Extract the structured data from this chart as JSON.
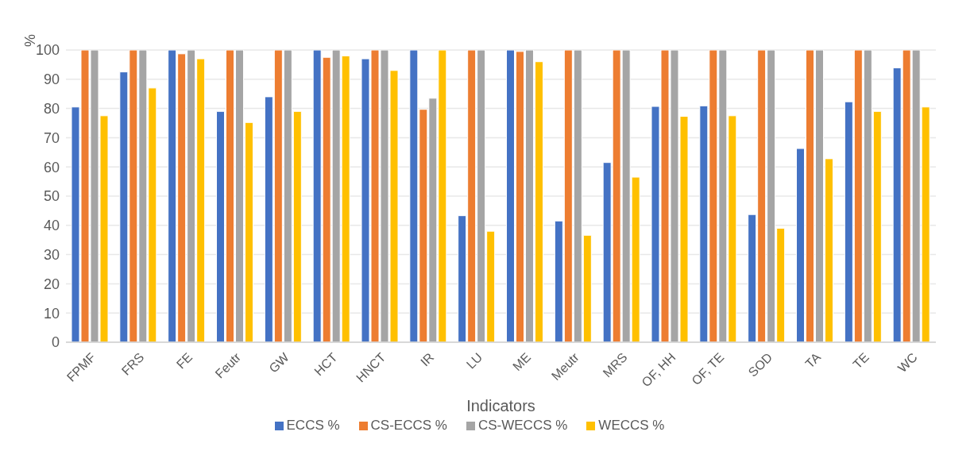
{
  "chart_data": {
    "type": "bar",
    "xlabel": "Indicators",
    "ylabel": "%",
    "categories": [
      "FPMF",
      "FRS",
      "FE",
      "Feutr",
      "GW",
      "HCT",
      "HNCT",
      "IR",
      "LU",
      "ME",
      "Meutr",
      "MRS",
      "OF, HH",
      "OF, TE",
      "SOD",
      "TA",
      "TE",
      "WC"
    ],
    "series": [
      {
        "name": "ECCS %",
        "color": "#4472c4",
        "values": [
          80.5,
          92.5,
          100,
          79,
          84,
          100,
          97,
          100,
          43.3,
          100,
          41.5,
          61.5,
          80.7,
          80.9,
          43.7,
          66.3,
          82.3,
          93.9
        ]
      },
      {
        "name": "CS-ECCS %",
        "color": "#ed7d31",
        "values": [
          100,
          100,
          98.7,
          100,
          100,
          97.5,
          100,
          79.7,
          100,
          99.5,
          100,
          100,
          100,
          100,
          100,
          100,
          100,
          100
        ]
      },
      {
        "name": "CS-WECCS %",
        "color": "#a5a5a5",
        "values": [
          100,
          100,
          100,
          100,
          100,
          100,
          100,
          83.5,
          100,
          100,
          100,
          100,
          100,
          100,
          100,
          100,
          100,
          100
        ]
      },
      {
        "name": "WECCS %",
        "color": "#ffc000",
        "values": [
          77.5,
          87,
          97,
          75.2,
          79,
          98,
          93,
          100,
          38,
          96,
          36.6,
          56.5,
          77.3,
          77.5,
          39,
          62.8,
          79,
          80.5
        ]
      }
    ],
    "ylim": [
      0,
      100
    ],
    "yticks": [
      0,
      10,
      20,
      30,
      40,
      50,
      60,
      70,
      80,
      90,
      100
    ],
    "grid": "y",
    "legend": "bottom"
  }
}
